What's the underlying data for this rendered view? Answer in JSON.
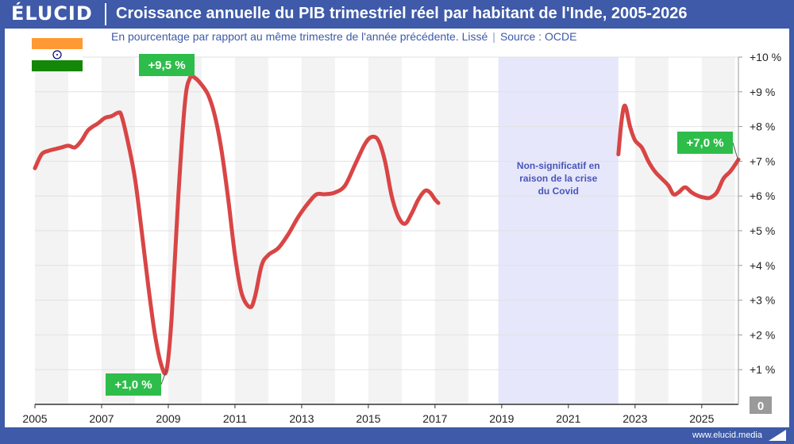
{
  "header": {
    "brand": "ÉLUCID",
    "title": "Croissance annuelle du PIB trimestriel réel par habitant de l'Inde, 2005-2026"
  },
  "subtitle": {
    "text": "En pourcentage par rapport au même trimestre de l'année précédente. Lissé",
    "separator": "|",
    "source": "Source : OCDE"
  },
  "footer": {
    "url": "www.elucid.media"
  },
  "flag": {
    "country": "India",
    "icon": "india-flag-icon",
    "colors": [
      "#ff9933",
      "#ffffff",
      "#138808",
      "#000080"
    ]
  },
  "colors": {
    "line": "#d94545",
    "badge": "#2ebd4a",
    "brand": "#3e5aa8",
    "covid_band": "#e6e7fb"
  },
  "chart_data": {
    "type": "line",
    "title": "Croissance annuelle du PIB trimestriel réel par habitant de l'Inde, 2005-2026",
    "xlabel": "",
    "ylabel": "",
    "xlim": [
      2005,
      2026.1
    ],
    "ylim": [
      0,
      10
    ],
    "x_ticks": [
      {
        "x": 2005,
        "label": "2005"
      },
      {
        "x": 2007,
        "label": "2007"
      },
      {
        "x": 2009,
        "label": "2009"
      },
      {
        "x": 2011,
        "label": "2011"
      },
      {
        "x": 2013,
        "label": "2013"
      },
      {
        "x": 2015,
        "label": "2015"
      },
      {
        "x": 2017,
        "label": "2017"
      },
      {
        "x": 2019,
        "label": "2019"
      },
      {
        "x": 2021,
        "label": "2021"
      },
      {
        "x": 2023,
        "label": "2023"
      },
      {
        "x": 2025,
        "label": "2025"
      }
    ],
    "y_ticks": [
      {
        "y": 10,
        "label": "+10 %"
      },
      {
        "y": 9,
        "label": "+9 %"
      },
      {
        "y": 8,
        "label": "+8 %"
      },
      {
        "y": 7,
        "label": "+7 %"
      },
      {
        "y": 6,
        "label": "+6 %"
      },
      {
        "y": 5,
        "label": "+5 %"
      },
      {
        "y": 4,
        "label": "+4 %"
      },
      {
        "y": 3,
        "label": "+3 %"
      },
      {
        "y": 2,
        "label": "+2 %"
      },
      {
        "y": 1,
        "label": "+1 %"
      },
      {
        "y": 0,
        "label": "0"
      }
    ],
    "grid": true,
    "shaded_band": {
      "x_start": 2018.9,
      "x_end": 2022.5,
      "label": [
        "Non-significatif en",
        "raison de la crise",
        "du Covid"
      ]
    },
    "series": [
      {
        "segment": 1,
        "points": [
          [
            2005.0,
            6.8
          ],
          [
            2005.2,
            7.2
          ],
          [
            2005.4,
            7.3
          ],
          [
            2005.6,
            7.35
          ],
          [
            2005.8,
            7.4
          ],
          [
            2006.0,
            7.45
          ],
          [
            2006.2,
            7.4
          ],
          [
            2006.4,
            7.6
          ],
          [
            2006.6,
            7.9
          ],
          [
            2006.9,
            8.1
          ],
          [
            2007.1,
            8.25
          ],
          [
            2007.3,
            8.3
          ],
          [
            2007.5,
            8.4
          ],
          [
            2007.6,
            8.3
          ],
          [
            2007.8,
            7.5
          ],
          [
            2008.0,
            6.5
          ],
          [
            2008.2,
            5.0
          ],
          [
            2008.4,
            3.4
          ],
          [
            2008.6,
            2.0
          ],
          [
            2008.8,
            1.1
          ],
          [
            2008.95,
            1.0
          ],
          [
            2009.1,
            2.5
          ],
          [
            2009.3,
            6.0
          ],
          [
            2009.5,
            8.7
          ],
          [
            2009.65,
            9.4
          ],
          [
            2009.8,
            9.4
          ],
          [
            2010.0,
            9.2
          ],
          [
            2010.2,
            8.9
          ],
          [
            2010.4,
            8.3
          ],
          [
            2010.6,
            7.3
          ],
          [
            2010.8,
            5.9
          ],
          [
            2011.0,
            4.3
          ],
          [
            2011.2,
            3.2
          ],
          [
            2011.45,
            2.8
          ],
          [
            2011.6,
            3.1
          ],
          [
            2011.8,
            4.0
          ],
          [
            2012.0,
            4.3
          ],
          [
            2012.3,
            4.5
          ],
          [
            2012.6,
            4.9
          ],
          [
            2012.9,
            5.4
          ],
          [
            2013.2,
            5.8
          ],
          [
            2013.45,
            6.05
          ],
          [
            2013.7,
            6.05
          ],
          [
            2014.0,
            6.1
          ],
          [
            2014.3,
            6.3
          ],
          [
            2014.6,
            6.9
          ],
          [
            2014.9,
            7.5
          ],
          [
            2015.1,
            7.7
          ],
          [
            2015.3,
            7.6
          ],
          [
            2015.5,
            7.0
          ],
          [
            2015.7,
            6.0
          ],
          [
            2015.9,
            5.4
          ],
          [
            2016.1,
            5.2
          ],
          [
            2016.3,
            5.5
          ],
          [
            2016.5,
            5.9
          ],
          [
            2016.7,
            6.15
          ],
          [
            2016.85,
            6.1
          ],
          [
            2017.0,
            5.9
          ],
          [
            2017.1,
            5.8
          ]
        ]
      },
      {
        "segment": 2,
        "points": [
          [
            2022.5,
            7.2
          ],
          [
            2022.6,
            8.2
          ],
          [
            2022.7,
            8.6
          ],
          [
            2022.85,
            8.0
          ],
          [
            2023.0,
            7.6
          ],
          [
            2023.2,
            7.4
          ],
          [
            2023.4,
            7.0
          ],
          [
            2023.6,
            6.7
          ],
          [
            2023.8,
            6.5
          ],
          [
            2024.0,
            6.3
          ],
          [
            2024.15,
            6.05
          ],
          [
            2024.3,
            6.1
          ],
          [
            2024.5,
            6.25
          ],
          [
            2024.7,
            6.1
          ],
          [
            2024.9,
            6.0
          ],
          [
            2025.1,
            5.95
          ],
          [
            2025.25,
            5.95
          ],
          [
            2025.45,
            6.1
          ],
          [
            2025.65,
            6.5
          ],
          [
            2025.85,
            6.7
          ],
          [
            2026.0,
            6.9
          ],
          [
            2026.1,
            7.05
          ]
        ]
      }
    ],
    "annotations": [
      {
        "label": "+9,5 %",
        "x": 2009.65,
        "y": 9.5
      },
      {
        "label": "+1,0 %",
        "x": 2008.95,
        "y": 1.0
      },
      {
        "label": "+7,0 %",
        "x": 2026.1,
        "y": 7.0
      }
    ]
  }
}
